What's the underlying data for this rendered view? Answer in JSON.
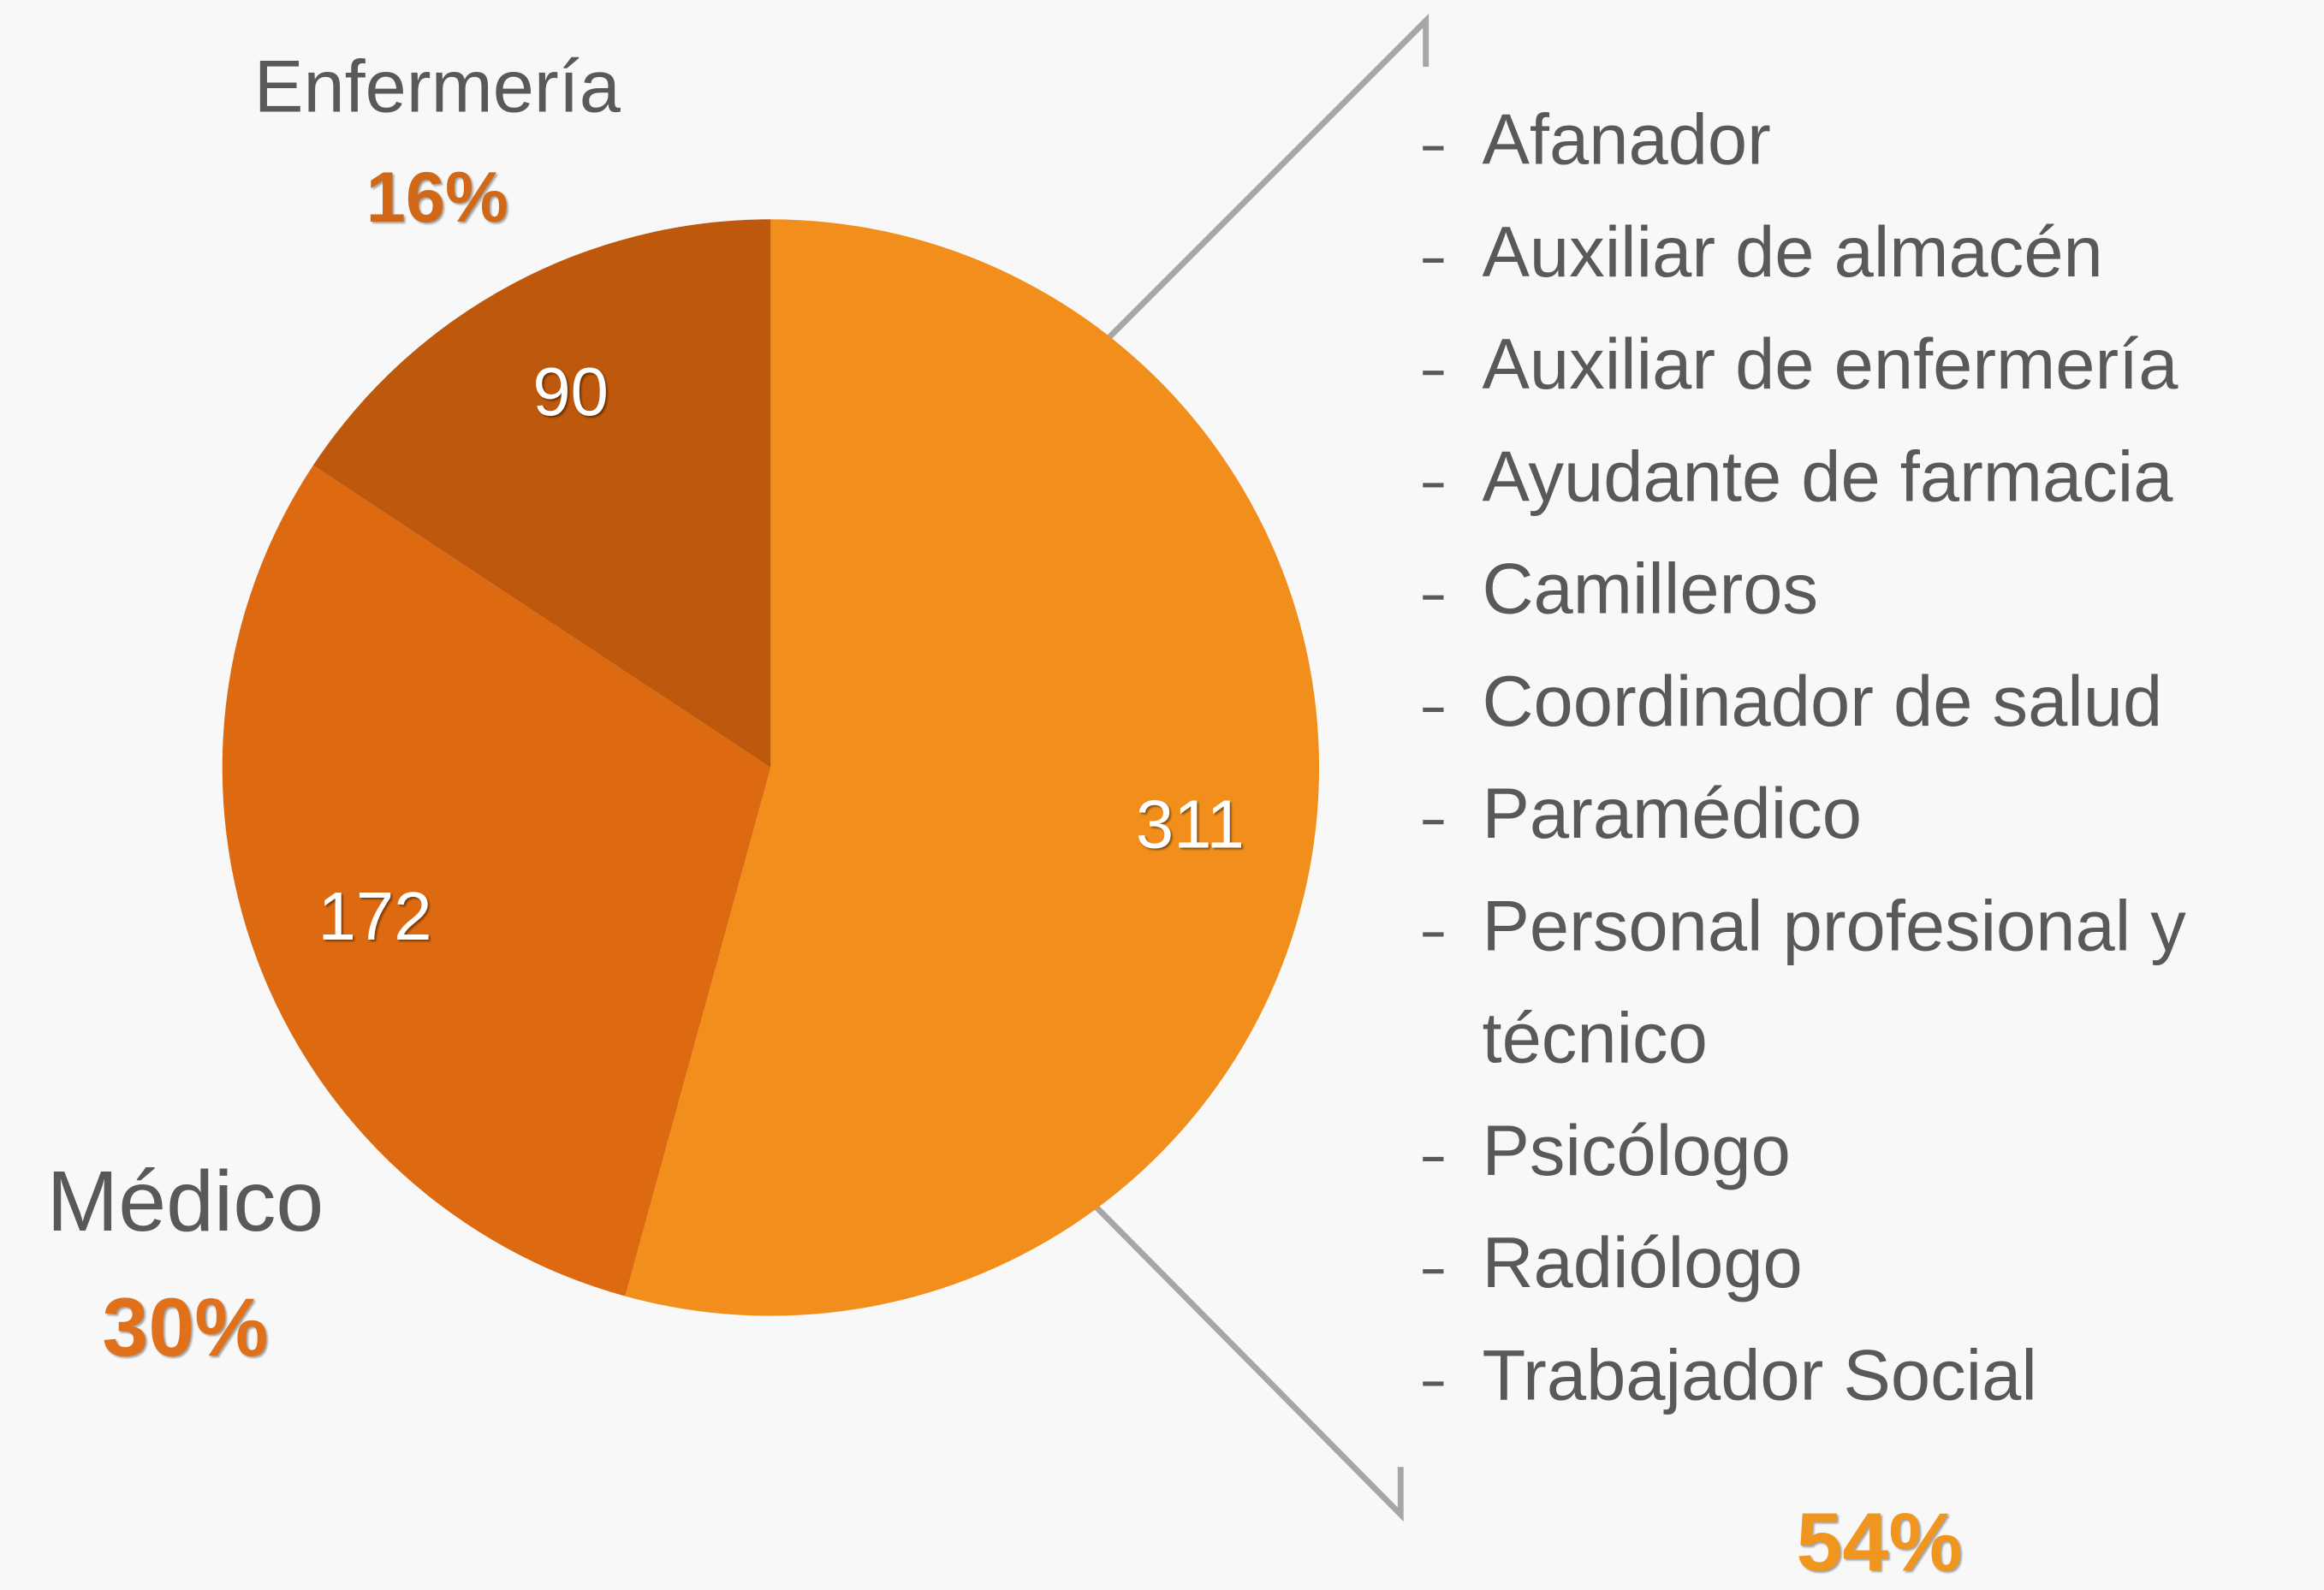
{
  "chart_data": {
    "type": "pie",
    "categories": [
      null,
      "Médico",
      "Enfermería"
    ],
    "values": [
      311,
      172,
      90
    ],
    "percentages": [
      54,
      30,
      16
    ],
    "percentage_labels": [
      "54%",
      "30%",
      "16%"
    ],
    "colors": [
      "#f28f1c",
      "#dd6a10",
      "#bd580c"
    ],
    "list": [
      "Afanador",
      "Auxiliar de almacén",
      "Auxiliar de enfermería",
      "Ayudante de farmacia",
      "Camilleros",
      "Coordinador de salud",
      "Paramédico",
      "Personal profesional y técnico",
      "Psicólogo",
      "Radiólogo",
      "Trabajador Social"
    ]
  }
}
